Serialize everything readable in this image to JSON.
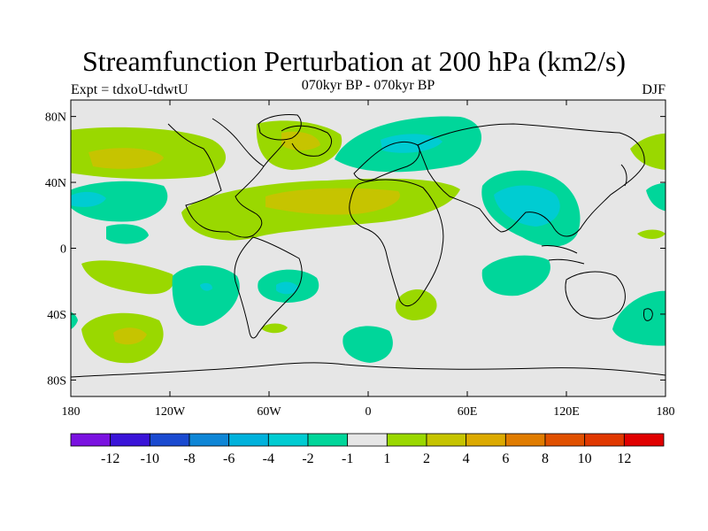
{
  "title": "Streamfunction Perturbation at 200 hPa (km2/s)",
  "experiment_label": "Expt = tdxoU-tdwtU",
  "period_label": "070kyr BP - 070kyr BP",
  "season_label": "DJF",
  "axes": {
    "x_ticks": [
      "180",
      "120W",
      "60W",
      "0",
      "60E",
      "120E",
      "180"
    ],
    "y_ticks": [
      "80N",
      "40N",
      "0",
      "40S",
      "80S"
    ]
  },
  "colorbar": {
    "labels": [
      "-12",
      "-10",
      "-8",
      "-6",
      "-4",
      "-2",
      "-1",
      "1",
      "2",
      "4",
      "6",
      "8",
      "10",
      "12"
    ],
    "colors": [
      "#7a12e0",
      "#3a14d8",
      "#1a4ad0",
      "#0e86d6",
      "#00b2dc",
      "#00ccd2",
      "#00d69a",
      "#e6e6e6",
      "#9ad800",
      "#c6c400",
      "#dcaa00",
      "#e07c00",
      "#e05000",
      "#e03800",
      "#e00000"
    ]
  },
  "colors": {
    "background": "#e6e6e6",
    "coastline": "#000000"
  }
}
